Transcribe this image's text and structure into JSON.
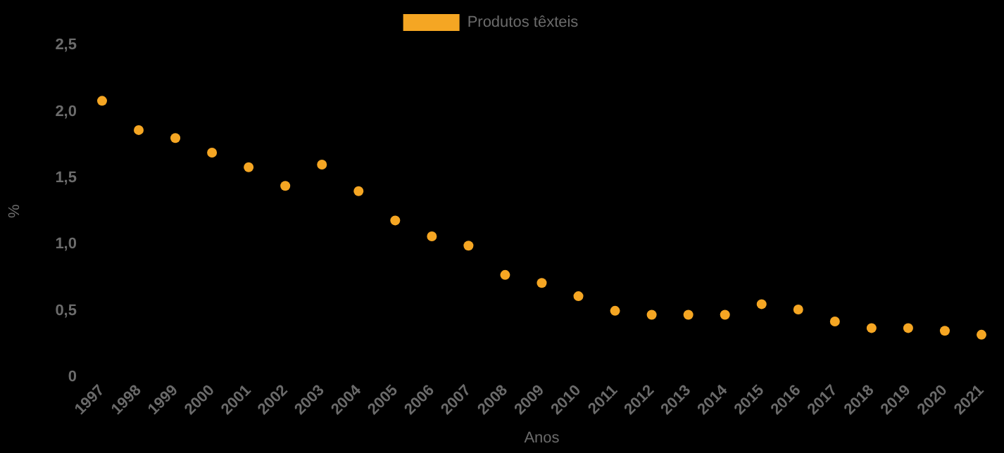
{
  "chart_data": {
    "type": "scatter",
    "xlabel": "Anos",
    "ylabel": "%",
    "legend": "top",
    "marker": "circle",
    "categories": [
      "1997",
      "1998",
      "1999",
      "2000",
      "2001",
      "2002",
      "2003",
      "2004",
      "2005",
      "2006",
      "2007",
      "2008",
      "2009",
      "2010",
      "2011",
      "2012",
      "2013",
      "2014",
      "2015",
      "2016",
      "2017",
      "2018",
      "2019",
      "2020",
      "2021"
    ],
    "series": [
      {
        "name": "Produtos têxteis",
        "color": "#f5a623",
        "values": [
          2.08,
          1.86,
          1.8,
          1.69,
          1.58,
          1.44,
          1.6,
          1.4,
          1.18,
          1.06,
          0.99,
          0.77,
          0.71,
          0.61,
          0.5,
          0.47,
          0.47,
          0.47,
          0.55,
          0.51,
          0.42,
          0.37,
          0.37,
          0.35,
          0.32
        ]
      }
    ],
    "ylim": [
      0,
      2.5
    ],
    "yticks": [
      0,
      {
        "value": 0.5,
        "label": "0,5"
      },
      {
        "value": 1,
        "label": "1,0"
      },
      {
        "value": 1.5,
        "label": "1,5"
      },
      {
        "value": 2,
        "label": "2,0"
      },
      {
        "value": 2.5,
        "label": "2,5"
      }
    ]
  }
}
